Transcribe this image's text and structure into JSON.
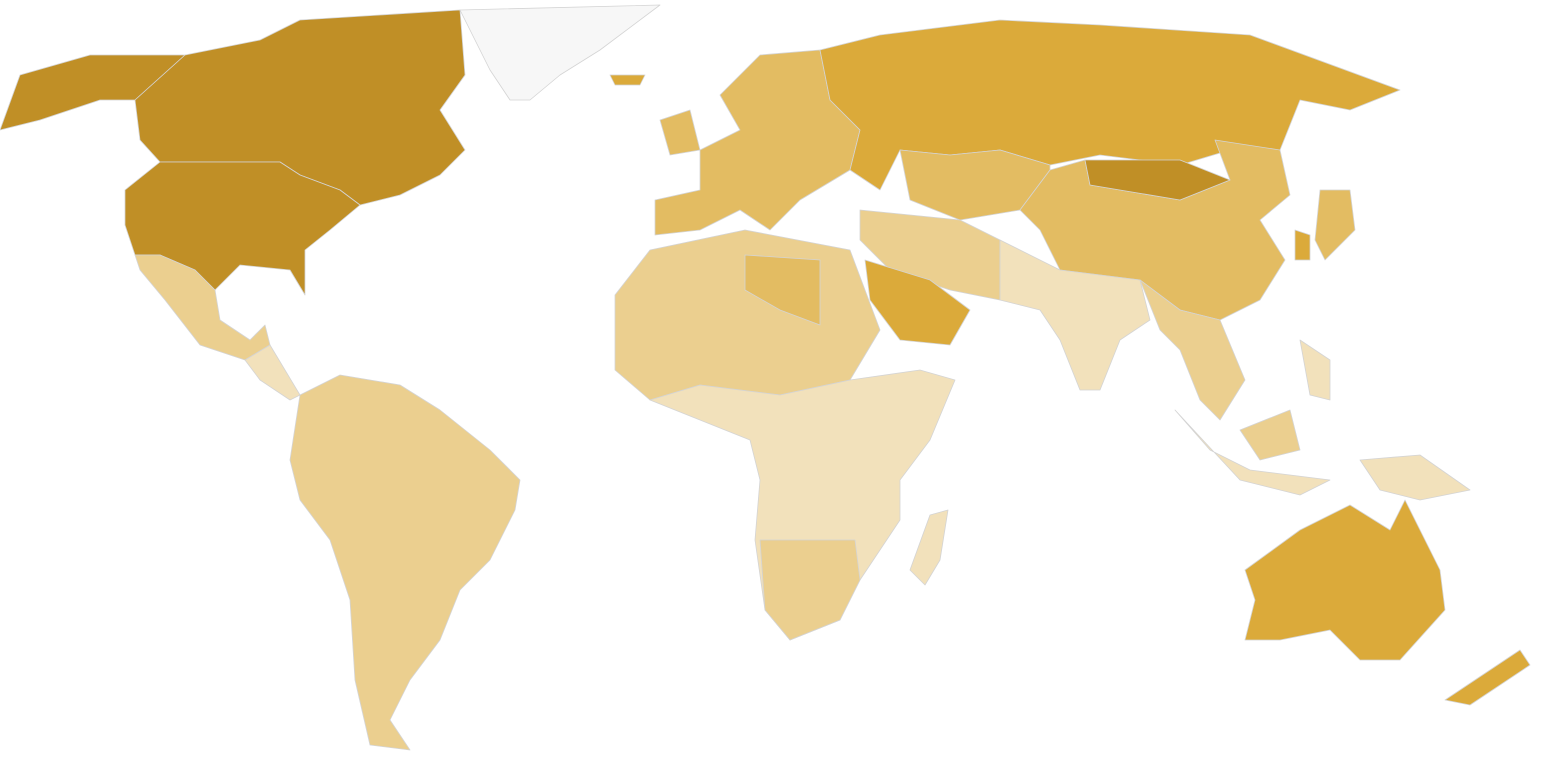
{
  "map": {
    "type": "choropleth",
    "palette": {
      "no_data": "#f7f7f7",
      "level_1": "#f2e1bb",
      "level_2": "#ebcf8f",
      "level_3": "#e3bc62",
      "level_4": "#dbaa3a",
      "level_5": "#c08f26"
    },
    "border_color": "#d4d4d4",
    "regions": {
      "canada": "level_5",
      "alaska": "level_5",
      "usa": "level_5",
      "mexico": "level_2",
      "central-america": "level_1",
      "south-america": "level_2",
      "greenland": "no_data",
      "iceland": "level_4",
      "uk": "level_3",
      "europe": "level_3",
      "russia": "level_4",
      "mongolia": "level_5",
      "china": "level_3",
      "central-asia": "level_3",
      "middle-east": "level_2",
      "saudi-arabia": "level_4",
      "north-africa": "level_2",
      "libya": "level_3",
      "sub-saharan-africa": "level_1",
      "southern-africa": "level_2",
      "madagascar": "level_1",
      "south-asia": "level_1",
      "southeast-asia": "level_2",
      "japan": "level_3",
      "korea": "level_4",
      "philippines": "level_1",
      "indonesia": "level_1",
      "borneo": "level_2",
      "new-guinea": "level_1",
      "australia": "level_4",
      "new-zealand": "level_4"
    }
  }
}
